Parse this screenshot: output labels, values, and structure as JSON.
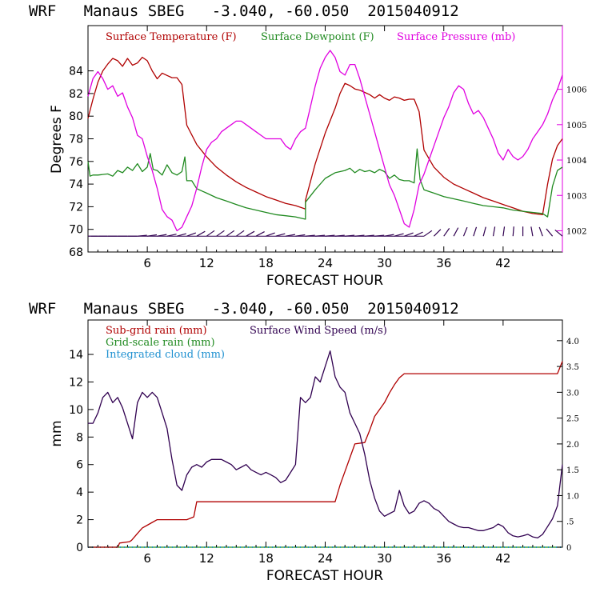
{
  "chart_data": [
    {
      "type": "line",
      "title": "WRF   Manaus SBEG   -3.040, -60.050  2015040912",
      "xlabel": "FORECAST HOUR",
      "ylabel": "Degrees F",
      "xlim": [
        0,
        48
      ],
      "ylim": [
        68,
        88
      ],
      "y2lim": [
        1001.4,
        1007.8
      ],
      "xticks": [
        6,
        12,
        18,
        24,
        30,
        36,
        42
      ],
      "xtick_labels": [
        "6",
        "12",
        "18",
        "24",
        "30",
        "36",
        "42"
      ],
      "yticks": [
        68,
        70,
        72,
        74,
        76,
        78,
        80,
        82,
        84
      ],
      "ytick_labels": [
        "68",
        "70",
        "72",
        "74",
        "76",
        "78",
        "80",
        "82",
        "84"
      ],
      "y2ticks": [
        1002,
        1003,
        1004,
        1005,
        1006
      ],
      "y2tick_labels": [
        "1002",
        "1003",
        "1004",
        "1005",
        "1006"
      ],
      "colors": {
        "temperature": "#b00000",
        "dewpoint": "#208a20",
        "pressure": "#e000e0",
        "wind": "#300050",
        "axis": "#000000",
        "right_axis": "#e000e0"
      },
      "series": [
        {
          "name": "Surface Temperature (F)",
          "axis": "left",
          "x": [
            0,
            0.5,
            1,
            1.5,
            2,
            2.5,
            3,
            3.5,
            4,
            4.5,
            5,
            5.5,
            6,
            6.5,
            7,
            7.5,
            8,
            8.5,
            9,
            9.5,
            10,
            11,
            12,
            13,
            14,
            15,
            16,
            17,
            18,
            19,
            20,
            21,
            22,
            22.01,
            23,
            24,
            25,
            25.5,
            26,
            26.5,
            27,
            27.5,
            28,
            28.5,
            29,
            29.5,
            30,
            30.5,
            31,
            31.5,
            32,
            32.5,
            33,
            33.5,
            34,
            35,
            36,
            37,
            38,
            39,
            40,
            41,
            42,
            43,
            44,
            45,
            46,
            46.5,
            47,
            47.5,
            48
          ],
          "values": [
            79.8,
            81.5,
            83,
            84,
            84.6,
            85.1,
            84.9,
            84.4,
            85.1,
            84.5,
            84.7,
            85.2,
            84.9,
            84,
            83.3,
            83.8,
            83.6,
            83.4,
            83.4,
            82.8,
            79.2,
            77.5,
            76.4,
            75.5,
            74.8,
            74.2,
            73.7,
            73.3,
            72.9,
            72.6,
            72.3,
            72.1,
            71.8,
            72.6,
            75.8,
            78.5,
            80.7,
            82,
            82.9,
            82.7,
            82.4,
            82.3,
            82.1,
            81.9,
            81.6,
            81.9,
            81.6,
            81.4,
            81.7,
            81.6,
            81.4,
            81.5,
            81.5,
            80.4,
            77,
            75.5,
            74.6,
            74,
            73.6,
            73.2,
            72.8,
            72.5,
            72.2,
            71.9,
            71.6,
            71.4,
            71.3,
            74,
            76.2,
            77.4,
            78
          ]
        },
        {
          "name": "Surface Dewpoint (F)",
          "axis": "left",
          "x": [
            0,
            0.2,
            0.5,
            1,
            2,
            2.5,
            3,
            3.5,
            4,
            4.5,
            5,
            5.5,
            6,
            6.3,
            6.6,
            7,
            7.5,
            8,
            8.5,
            9,
            9.5,
            9.8,
            10,
            10.5,
            11,
            12,
            13,
            14,
            15,
            16,
            17,
            18,
            19,
            20,
            21,
            22,
            22.01,
            23,
            24,
            25,
            26,
            26.5,
            27,
            27.5,
            28,
            28.5,
            29,
            29.5,
            30,
            30.5,
            31,
            31.5,
            32,
            32.5,
            33,
            33.3,
            33.6,
            34,
            35,
            36,
            37,
            38,
            39,
            40,
            41,
            42,
            43,
            44,
            45,
            46,
            46.5,
            47,
            47.5,
            48
          ],
          "values": [
            76,
            74.7,
            74.8,
            74.8,
            74.9,
            74.7,
            75.2,
            75,
            75.5,
            75.2,
            75.8,
            75.1,
            75.5,
            76.7,
            75.3,
            75.2,
            74.8,
            75.7,
            75,
            74.8,
            75.1,
            76.4,
            74.3,
            74.3,
            73.6,
            73.2,
            72.8,
            72.5,
            72.2,
            71.9,
            71.7,
            71.5,
            71.3,
            71.2,
            71.1,
            70.9,
            72.4,
            73.5,
            74.5,
            75,
            75.2,
            75.4,
            75,
            75.3,
            75.1,
            75.2,
            75,
            75.3,
            75.1,
            74.5,
            74.8,
            74.4,
            74.3,
            74.3,
            74.1,
            77.1,
            74.4,
            73.5,
            73.2,
            72.9,
            72.7,
            72.5,
            72.3,
            72.1,
            72,
            71.9,
            71.7,
            71.6,
            71.5,
            71.4,
            71.1,
            73.8,
            75.2,
            75.5
          ]
        },
        {
          "name": "Surface Pressure (mb)",
          "axis": "right",
          "x": [
            0,
            0.5,
            1,
            1.5,
            2,
            2.5,
            3,
            3.5,
            4,
            4.5,
            5,
            5.5,
            6,
            6.5,
            7,
            7.5,
            8,
            8.5,
            9,
            9.5,
            10,
            10.5,
            11,
            11.5,
            12,
            12.5,
            13,
            13.5,
            14,
            14.5,
            15,
            15.5,
            16,
            16.5,
            17,
            17.5,
            18,
            18.5,
            19,
            19.5,
            20,
            20.5,
            21,
            21.5,
            22,
            22.5,
            23,
            23.5,
            24,
            24.5,
            25,
            25.5,
            26,
            26.5,
            27,
            27.5,
            28,
            28.5,
            29,
            29.5,
            30,
            30.5,
            31,
            31.5,
            32,
            32.5,
            33,
            33.5,
            34,
            34.5,
            35,
            35.5,
            36,
            36.5,
            37,
            37.5,
            38,
            38.5,
            39,
            39.5,
            40,
            40.5,
            41,
            41.5,
            42,
            42.5,
            43,
            43.5,
            44,
            44.5,
            45,
            45.5,
            46,
            46.5,
            47,
            47.5,
            48
          ],
          "values": [
            1005.8,
            1006.3,
            1006.5,
            1006.3,
            1006,
            1006.1,
            1005.8,
            1005.9,
            1005.5,
            1005.2,
            1004.7,
            1004.6,
            1004.1,
            1003.7,
            1003.2,
            1002.6,
            1002.4,
            1002.3,
            1002,
            1002.1,
            1002.4,
            1002.7,
            1003.2,
            1003.8,
            1004.3,
            1004.5,
            1004.6,
            1004.8,
            1004.9,
            1005,
            1005.1,
            1005.1,
            1005,
            1004.9,
            1004.8,
            1004.7,
            1004.6,
            1004.6,
            1004.6,
            1004.6,
            1004.4,
            1004.3,
            1004.6,
            1004.8,
            1004.9,
            1005.5,
            1006.1,
            1006.6,
            1006.9,
            1007.1,
            1006.9,
            1006.5,
            1006.4,
            1006.7,
            1006.7,
            1006.3,
            1005.8,
            1005.3,
            1004.8,
            1004.3,
            1003.8,
            1003.3,
            1003,
            1002.6,
            1002.2,
            1002.1,
            1002.6,
            1003.3,
            1003.6,
            1004,
            1004.4,
            1004.8,
            1005.2,
            1005.5,
            1005.9,
            1006.1,
            1006,
            1005.6,
            1005.3,
            1005.4,
            1005.2,
            1004.9,
            1004.6,
            1004.2,
            1004,
            1004.3,
            1004.1,
            1004,
            1004.1,
            1004.3,
            1004.6,
            1004.8,
            1005,
            1005.3,
            1005.7,
            1006,
            1006.4
          ]
        }
      ],
      "wind_barb_hours": [
        0,
        1,
        2,
        3,
        4,
        5,
        6,
        7,
        8,
        9,
        10,
        11,
        12,
        13,
        14,
        15,
        16,
        17,
        18,
        19,
        20,
        21,
        22,
        23,
        24,
        25,
        26,
        27,
        28,
        29,
        30,
        31,
        32,
        33,
        34,
        35,
        36,
        37,
        38,
        39,
        40,
        41,
        42,
        43,
        44,
        45,
        46,
        47,
        48
      ],
      "wind_barb_angles_deg": [
        0,
        0,
        0,
        0,
        0,
        5,
        8,
        10,
        12,
        15,
        20,
        30,
        35,
        35,
        35,
        35,
        30,
        28,
        20,
        15,
        10,
        8,
        5,
        5,
        5,
        5,
        5,
        5,
        5,
        5,
        10,
        15,
        20,
        25,
        35,
        45,
        55,
        62,
        68,
        72,
        75,
        80,
        82,
        85,
        90,
        100,
        110,
        130,
        140
      ],
      "legend": [
        "Surface Temperature (F)",
        "Surface Dewpoint (F)",
        "Surface Pressure (mb)"
      ]
    },
    {
      "type": "line",
      "title": "WRF   Manaus SBEG   -3.040, -60.050  2015040912",
      "xlabel": "FORECAST HOUR",
      "ylabel": "mm",
      "xlim": [
        0,
        48
      ],
      "ylim": [
        0,
        16.5
      ],
      "y2lim": [
        0,
        4.4
      ],
      "xticks": [
        6,
        12,
        18,
        24,
        30,
        36,
        42
      ],
      "xtick_labels": [
        "6",
        "12",
        "18",
        "24",
        "30",
        "36",
        "42"
      ],
      "yticks": [
        0,
        2,
        4,
        6,
        8,
        10,
        12,
        14
      ],
      "ytick_labels": [
        "0",
        "2",
        "4",
        "6",
        "8",
        "10",
        "12",
        "14"
      ],
      "y2ticks": [
        0,
        0.5,
        1,
        1.5,
        2,
        2.5,
        3,
        3.5,
        4
      ],
      "y2tick_labels": [
        "0",
        ".5",
        "1.0",
        "1.5",
        "2.0",
        "2.5",
        "3.0",
        "3.5",
        "4.0"
      ],
      "colors": {
        "subgrid": "#b00000",
        "gridscale": "#208a20",
        "cloud": "#1e90d0",
        "wind": "#300050",
        "axis": "#000000"
      },
      "series": [
        {
          "name": "Sub-grid rain (mm)",
          "axis": "left",
          "x": [
            0,
            3,
            3.2,
            4.2,
            4.4,
            5,
            5.5,
            6,
            6.5,
            7,
            8,
            9,
            10,
            10.7,
            11,
            20,
            25,
            25.5,
            26,
            26.5,
            27,
            28,
            28.5,
            29,
            30,
            30.5,
            31,
            31.5,
            32,
            40,
            47.5,
            48
          ],
          "values": [
            0,
            0,
            0.3,
            0.4,
            0.5,
            1,
            1.4,
            1.6,
            1.8,
            2,
            2,
            2,
            2,
            2.2,
            3.3,
            3.3,
            3.3,
            4.5,
            5.5,
            6.5,
            7.5,
            7.6,
            8.5,
            9.5,
            10.5,
            11.2,
            11.8,
            12.3,
            12.6,
            12.6,
            12.6,
            13.5
          ]
        },
        {
          "name": "Grid-scale rain (mm)",
          "axis": "left",
          "x": [
            0,
            48
          ],
          "values": [
            0,
            0
          ]
        },
        {
          "name": "Integrated cloud (mm)",
          "axis": "left",
          "x": [
            0,
            48
          ],
          "values": [
            0,
            0
          ]
        },
        {
          "name": "Surface Wind Speed (m/s)",
          "axis": "right",
          "x": [
            0,
            0.5,
            1,
            1.5,
            2,
            2.5,
            3,
            3.5,
            4,
            4.5,
            5,
            5.5,
            6,
            6.5,
            7,
            7.5,
            8,
            8.5,
            9,
            9.5,
            10,
            10.5,
            11,
            11.5,
            12,
            12.5,
            13,
            13.5,
            14,
            14.5,
            15,
            15.5,
            16,
            16.5,
            17,
            17.5,
            18,
            18.5,
            19,
            19.5,
            20,
            20.5,
            21,
            21.5,
            22,
            22.5,
            23,
            23.5,
            24,
            24.5,
            25,
            25.5,
            26,
            26.5,
            27,
            27.5,
            28,
            28.5,
            29,
            29.5,
            30,
            30.5,
            31,
            31.5,
            32,
            32.5,
            33,
            33.5,
            34,
            34.5,
            35,
            35.5,
            36,
            36.5,
            37,
            37.5,
            38,
            38.5,
            39,
            39.5,
            40,
            40.5,
            41,
            41.5,
            42,
            42.5,
            43,
            43.5,
            44,
            44.5,
            45,
            45.5,
            46,
            46.5,
            47,
            47.5,
            48
          ],
          "values": [
            2.4,
            2.4,
            2.6,
            2.9,
            3,
            2.8,
            2.9,
            2.7,
            2.4,
            2.1,
            2.8,
            3,
            2.9,
            3,
            2.9,
            2.6,
            2.3,
            1.7,
            1.2,
            1.1,
            1.4,
            1.55,
            1.6,
            1.55,
            1.65,
            1.7,
            1.7,
            1.7,
            1.65,
            1.6,
            1.5,
            1.55,
            1.6,
            1.5,
            1.45,
            1.4,
            1.45,
            1.4,
            1.35,
            1.25,
            1.3,
            1.45,
            1.6,
            2.9,
            2.8,
            2.9,
            3.3,
            3.2,
            3.5,
            3.8,
            3.3,
            3.1,
            3,
            2.6,
            2.4,
            2.2,
            1.8,
            1.3,
            0.95,
            0.7,
            0.6,
            0.65,
            0.7,
            1.1,
            0.8,
            0.65,
            0.7,
            0.85,
            0.9,
            0.85,
            0.75,
            0.7,
            0.6,
            0.5,
            0.45,
            0.4,
            0.38,
            0.38,
            0.35,
            0.32,
            0.32,
            0.35,
            0.38,
            0.45,
            0.4,
            0.28,
            0.22,
            0.2,
            0.22,
            0.25,
            0.2,
            0.18,
            0.25,
            0.4,
            0.55,
            0.8,
            1.6
          ]
        }
      ],
      "legend": [
        "Sub-grid rain (mm)",
        "Surface Wind Speed (m/s)",
        "Grid-scale rain (mm)",
        "Integrated cloud (mm)"
      ]
    }
  ]
}
